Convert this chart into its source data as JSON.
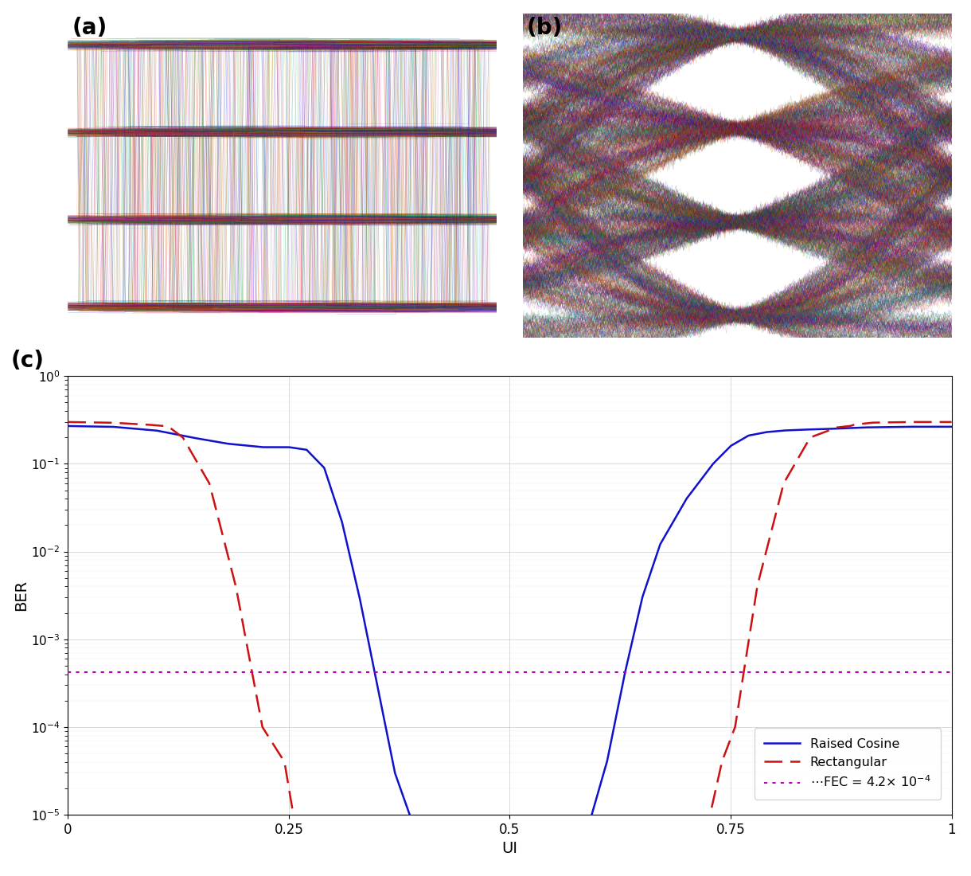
{
  "panel_a_label": "(a)",
  "panel_b_label": "(b)",
  "panel_c_label": "(c)",
  "xlabel": "UI",
  "ylabel": "BER",
  "xlim": [
    0,
    1
  ],
  "xticks": [
    0,
    0.25,
    0.5,
    0.75,
    1
  ],
  "fec_level": 0.00042,
  "legend_labels": [
    "Raised Cosine",
    "Rectangular",
    "FEC = 4.2× 10⁻⁴"
  ],
  "rc_color": "#1111CC",
  "rect_color": "#CC1111",
  "fec_color": "#BB00BB",
  "background_color": "#ffffff",
  "rc_ber_x": [
    0.0,
    0.05,
    0.1,
    0.14,
    0.18,
    0.22,
    0.25,
    0.27,
    0.29,
    0.31,
    0.33,
    0.35,
    0.37,
    0.39,
    0.41,
    0.44,
    0.5,
    0.56,
    0.59,
    0.61,
    0.63,
    0.65,
    0.67,
    0.7,
    0.73,
    0.75,
    0.77,
    0.79,
    0.81,
    0.83,
    0.86,
    0.9,
    0.95,
    1.0
  ],
  "rc_ber_y": [
    0.27,
    0.265,
    0.24,
    0.2,
    0.17,
    0.155,
    0.155,
    0.145,
    0.09,
    0.022,
    0.003,
    0.0003,
    3e-05,
    8e-06,
    5e-06,
    5e-06,
    5e-06,
    5e-06,
    8e-06,
    4e-05,
    0.0004,
    0.003,
    0.012,
    0.04,
    0.1,
    0.16,
    0.21,
    0.23,
    0.24,
    0.245,
    0.25,
    0.26,
    0.265,
    0.265
  ],
  "rect_ber_x": [
    0.0,
    0.05,
    0.09,
    0.11,
    0.115,
    0.13,
    0.16,
    0.19,
    0.22,
    0.245,
    0.26,
    0.28,
    0.35,
    0.5,
    0.65,
    0.72,
    0.74,
    0.755,
    0.78,
    0.81,
    0.84,
    0.87,
    0.885,
    0.89,
    0.91,
    0.95,
    1.0
  ],
  "rect_ber_y": [
    0.3,
    0.295,
    0.28,
    0.27,
    0.26,
    0.2,
    0.06,
    0.004,
    0.0001,
    4e-05,
    5e-06,
    5e-06,
    5e-06,
    5e-06,
    5e-06,
    5e-06,
    4e-05,
    0.0001,
    0.004,
    0.06,
    0.2,
    0.26,
    0.27,
    0.28,
    0.295,
    0.3,
    0.3
  ]
}
